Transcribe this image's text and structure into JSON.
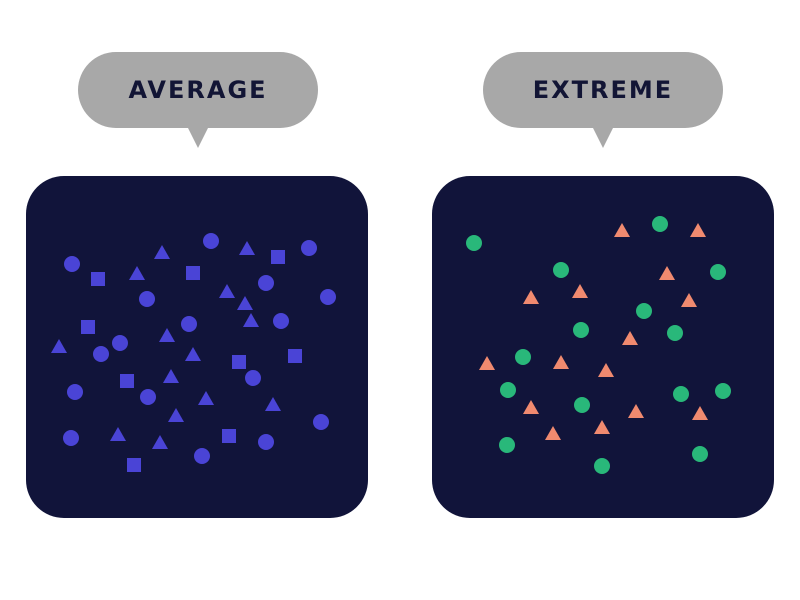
{
  "panels": [
    {
      "label": "AVERAGE",
      "background": "#11143a",
      "shape_color": "#4a44d6",
      "shape_types": [
        "circle",
        "square",
        "triangle"
      ]
    },
    {
      "label": "EXTREME",
      "background": "#11143a",
      "circle_color": "#29b87a",
      "triangle_color": "#f08a6f",
      "shape_types": [
        "circle",
        "triangle"
      ]
    }
  ]
}
